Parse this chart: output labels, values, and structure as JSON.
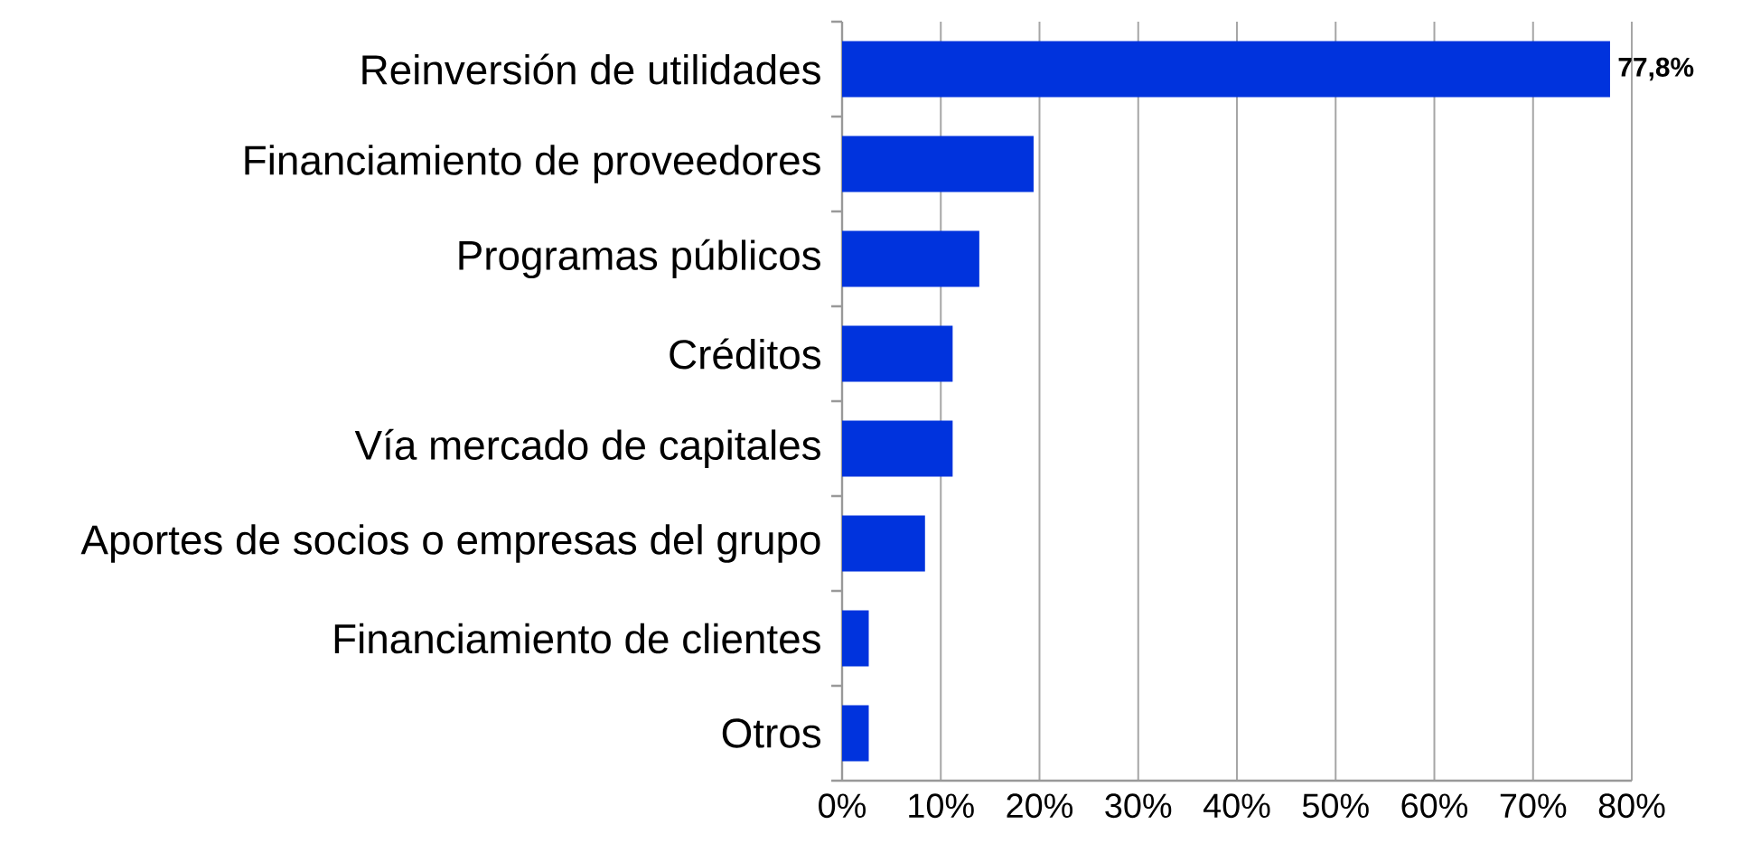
{
  "chart_data": {
    "type": "bar",
    "orientation": "horizontal",
    "categories": [
      "Reinversión de utilidades",
      "Financiamiento de proveedores",
      "Programas públicos",
      "Créditos",
      "Vía mercado de capitales",
      "Aportes de socios o empresas del grupo",
      "Financiamiento de clientes",
      "Otros"
    ],
    "values": [
      77.8,
      19.4,
      13.9,
      11.2,
      11.2,
      8.4,
      2.7,
      2.7
    ],
    "value_labels": [
      "77,8%",
      null,
      null,
      null,
      null,
      null,
      null,
      null
    ],
    "color": "#0033dd",
    "xlim": [
      0,
      80
    ],
    "xticks": [
      {
        "value": 0,
        "label": "0%"
      },
      {
        "value": 10,
        "label": "10%"
      },
      {
        "value": 20,
        "label": "20%"
      },
      {
        "value": 30,
        "label": "30%"
      },
      {
        "value": 40,
        "label": "40%"
      },
      {
        "value": 50,
        "label": "50%"
      },
      {
        "value": 60,
        "label": "60%"
      },
      {
        "value": 70,
        "label": "70%"
      },
      {
        "value": 80,
        "label": "80%"
      }
    ],
    "grid": "x"
  }
}
